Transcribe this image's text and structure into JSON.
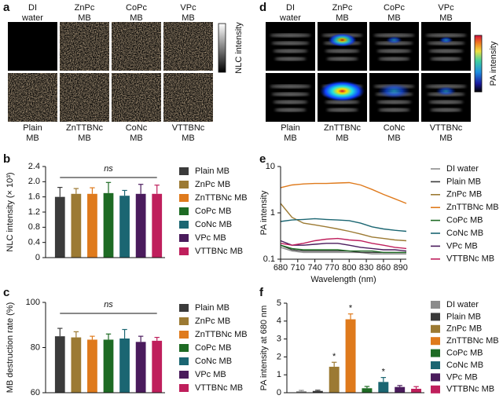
{
  "image_panels": [
    {
      "panel_label": "a",
      "labels_top": [
        [
          "DI",
          "water"
        ],
        [
          "ZnPc",
          "MB"
        ],
        [
          "CoPc",
          "MB"
        ],
        [
          "VPc",
          "MB"
        ]
      ],
      "labels_bottom": [
        [
          "Plain",
          "MB"
        ],
        [
          "ZnTTBNc",
          "MB"
        ],
        [
          "CoNc",
          "MB"
        ],
        [
          "VTTBNc",
          "MB"
        ]
      ],
      "colorbar_label": "NLC intensity"
    },
    {
      "panel_label": "d",
      "labels_top": [
        [
          "DI",
          "water"
        ],
        [
          "ZnPc",
          "MB"
        ],
        [
          "CoPc",
          "MB"
        ],
        [
          "VPc",
          "MB"
        ]
      ],
      "labels_bottom": [
        [
          "Plain",
          "MB"
        ],
        [
          "ZnTTBNc",
          "MB"
        ],
        [
          "CoNc",
          "MB"
        ],
        [
          "VTTBNc",
          "MB"
        ]
      ],
      "colorbar_label": "PA intensity"
    }
  ],
  "chart_data": [
    {
      "type": "bar",
      "panel_label": "b",
      "y_label": "NLC intensity (× 10³)",
      "annotation": "ns",
      "categories": [
        "Plain MB",
        "ZnPc MB",
        "ZnTTBNc MB",
        "CoPc MB",
        "CoNc MB",
        "VPc MB",
        "VTTBNc MB"
      ],
      "values": [
        1.6,
        1.68,
        1.68,
        1.7,
        1.63,
        1.68,
        1.68
      ],
      "errors": [
        0.25,
        0.14,
        0.16,
        0.28,
        0.14,
        0.25,
        0.23
      ],
      "colors": [
        "#3b3b3b",
        "#9c7a33",
        "#df7a1c",
        "#1e6b24",
        "#1b6672",
        "#4a1b5c",
        "#bf1f5c"
      ],
      "ylim": [
        0,
        2.4
      ],
      "yticks": [
        0,
        0.4,
        0.8,
        1.2,
        1.6,
        {
          "value": 2,
          "label": "2.0"
        },
        2.4
      ]
    },
    {
      "type": "bar",
      "panel_label": "c",
      "y_label": "MB destruction rate (%)",
      "annotation": "ns",
      "categories": [
        "Plain MB",
        "ZnPc MB",
        "ZnTTBNc MB",
        "CoPc MB",
        "CoNc MB",
        "VPc MB",
        "VTTBNc MB"
      ],
      "values": [
        85,
        84.5,
        83.5,
        83.5,
        84,
        82.5,
        83
      ],
      "errors": [
        3.5,
        2.5,
        1.5,
        2.5,
        4,
        2.5,
        1.5
      ],
      "colors": [
        "#3b3b3b",
        "#9c7a33",
        "#df7a1c",
        "#1e6b24",
        "#1b6672",
        "#4a1b5c",
        "#bf1f5c"
      ],
      "ylim": [
        60,
        100
      ],
      "yticks": [
        60,
        80,
        100
      ]
    },
    {
      "type": "line",
      "panel_label": "e",
      "y_label": "PA intensity",
      "x_label": "Wavelength (nm)",
      "log_y": true,
      "x": [
        680,
        700,
        720,
        740,
        760,
        780,
        800,
        820,
        840,
        860,
        880,
        900
      ],
      "series": [
        {
          "name": "DI water",
          "color": "#8c8c8c",
          "values": [
            0.18,
            0.15,
            0.14,
            0.14,
            0.14,
            0.14,
            0.14,
            0.14,
            0.13,
            0.13,
            0.13,
            0.13
          ]
        },
        {
          "name": "Plain MB",
          "color": "#3b3b3b",
          "values": [
            0.2,
            0.16,
            0.15,
            0.15,
            0.15,
            0.15,
            0.15,
            0.14,
            0.14,
            0.14,
            0.14,
            0.14
          ]
        },
        {
          "name": "ZnPc MB",
          "color": "#9c7a33",
          "values": [
            1.6,
            0.8,
            0.6,
            0.55,
            0.5,
            0.45,
            0.4,
            0.35,
            0.3,
            0.28,
            0.26,
            0.25
          ]
        },
        {
          "name": "ZnTTBNc MB",
          "color": "#df7a1c",
          "values": [
            3.5,
            4,
            4.2,
            4.3,
            4.3,
            4.4,
            4.5,
            4,
            3.2,
            2.5,
            2,
            1.6
          ]
        },
        {
          "name": "CoPc MB",
          "color": "#1e6b24",
          "values": [
            0.2,
            0.17,
            0.16,
            0.16,
            0.16,
            0.16,
            0.15,
            0.15,
            0.15,
            0.14,
            0.14,
            0.14
          ]
        },
        {
          "name": "CoNc MB",
          "color": "#1b6672",
          "values": [
            0.65,
            0.7,
            0.72,
            0.75,
            0.72,
            0.7,
            0.68,
            0.6,
            0.5,
            0.45,
            0.42,
            0.4
          ]
        },
        {
          "name": "VPc MB",
          "color": "#4a1b5c",
          "values": [
            0.25,
            0.2,
            0.2,
            0.21,
            0.22,
            0.22,
            0.2,
            0.18,
            0.17,
            0.16,
            0.16,
            0.15
          ]
        },
        {
          "name": "VTTBNc MB",
          "color": "#bf1f5c",
          "values": [
            0.22,
            0.2,
            0.22,
            0.25,
            0.27,
            0.28,
            0.26,
            0.25,
            0.22,
            0.2,
            0.18,
            0.17
          ]
        }
      ],
      "xlim": [
        680,
        900
      ],
      "xticks": [
        680,
        710,
        740,
        770,
        800,
        830,
        860,
        890
      ],
      "ylim": [
        0.1,
        10
      ],
      "yticks": [
        0.1,
        1,
        10
      ]
    },
    {
      "type": "bar",
      "panel_label": "f",
      "y_label": "PA intensity at 680 nm",
      "categories": [
        "DI water",
        "Plain MB",
        "ZnPc MB",
        "ZnTTBNc MB",
        "CoPc MB",
        "CoNc MB",
        "VPc MB",
        "VTTBNc MB"
      ],
      "values": [
        0.08,
        0.1,
        1.45,
        4.1,
        0.25,
        0.6,
        0.32,
        0.22
      ],
      "errors": [
        0.05,
        0.04,
        0.25,
        0.3,
        0.1,
        0.25,
        0.08,
        0.12
      ],
      "significance": [
        null,
        null,
        "*",
        "*",
        null,
        "*",
        null,
        null
      ],
      "colors": [
        "#8c8c8c",
        "#3b3b3b",
        "#9c7a33",
        "#df7a1c",
        "#1e6b24",
        "#1b6672",
        "#4a1b5c",
        "#bf1f5c"
      ],
      "ylim": [
        0,
        5
      ],
      "yticks": [
        0,
        1,
        2,
        3,
        4,
        5
      ]
    }
  ]
}
